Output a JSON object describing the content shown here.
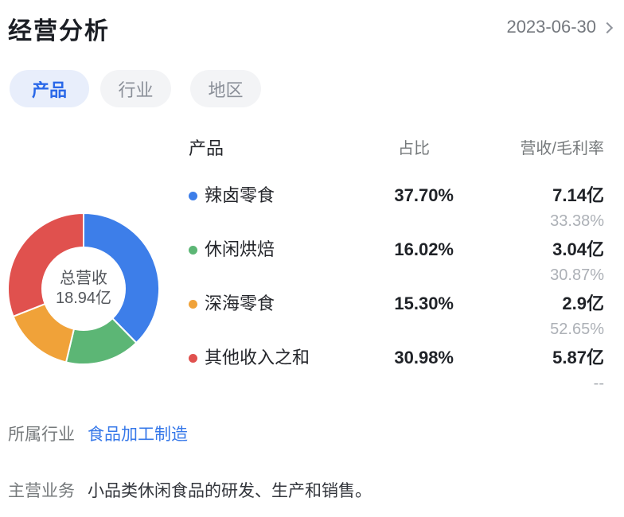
{
  "header": {
    "title": "经营分析",
    "date": "2023-06-30"
  },
  "tabs": [
    {
      "label": "产品",
      "active": true
    },
    {
      "label": "行业",
      "active": false
    },
    {
      "label": "地区",
      "active": false
    }
  ],
  "table": {
    "columns": [
      "产品",
      "占比",
      "营收/毛利率"
    ],
    "rows": [
      {
        "name": "辣卤零食",
        "share": "37.70%",
        "revenue": "7.14亿",
        "margin": "33.38%",
        "color": "#3D7EE9"
      },
      {
        "name": "休闲烘焙",
        "share": "16.02%",
        "revenue": "3.04亿",
        "margin": "30.87%",
        "color": "#5CB675"
      },
      {
        "name": "深海零食",
        "share": "15.30%",
        "revenue": "2.9亿",
        "margin": "52.65%",
        "color": "#F0A239"
      },
      {
        "name": "其他收入之和",
        "share": "30.98%",
        "revenue": "5.87亿",
        "margin": "--",
        "color": "#E0514E"
      }
    ]
  },
  "chart_data": {
    "type": "pie",
    "donut": true,
    "center_label": "总营收",
    "center_value": "18.94亿",
    "total_revenue": "18.94亿",
    "value_unit": "percent",
    "start_angle_deg": 0,
    "clockwise": true,
    "legend_position": "right-table",
    "series": [
      {
        "name": "辣卤零食",
        "value": 37.7,
        "revenue": "7.14亿",
        "gross_margin": "33.38%",
        "color": "#3D7EE9"
      },
      {
        "name": "休闲烘焙",
        "value": 16.02,
        "revenue": "3.04亿",
        "gross_margin": "30.87%",
        "color": "#5CB675"
      },
      {
        "name": "深海零食",
        "value": 15.3,
        "revenue": "2.9亿",
        "gross_margin": "52.65%",
        "color": "#F0A239"
      },
      {
        "name": "其他收入之和",
        "value": 30.98,
        "revenue": "5.87亿",
        "gross_margin": "--",
        "color": "#E0514E"
      }
    ]
  },
  "info": {
    "industry_label": "所属行业",
    "industry_value": "食品加工制造",
    "business_label": "主营业务",
    "business_value": "小品类休闲食品的研发、生产和销售。"
  },
  "colors": {
    "accent_blue": "#2A68E8",
    "link_blue": "#3678E9",
    "series_blue": "#3D7EE9",
    "series_green": "#5CB675",
    "series_orange": "#F0A239",
    "series_red": "#E0514E",
    "active_tab_bg": "#E8EEFB",
    "inactive_tab_bg": "#F3F4F6"
  }
}
